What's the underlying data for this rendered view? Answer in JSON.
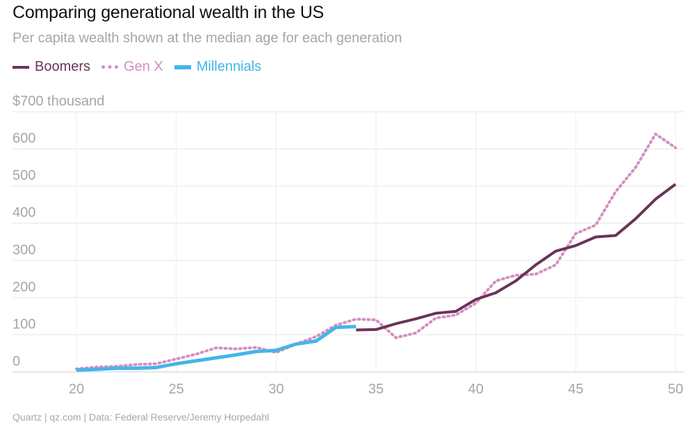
{
  "chart_data": {
    "type": "line",
    "title": "Comparing generational wealth in the US",
    "subtitle": "Per capita wealth shown at the median age for each generation",
    "y_unit_label": "$700 thousand",
    "ylim": [
      0,
      700
    ],
    "xlim": [
      20,
      50
    ],
    "y_ticks": [
      "0",
      "100",
      "200",
      "300",
      "400",
      "500",
      "600"
    ],
    "x_ticks": [
      "20",
      "25",
      "30",
      "35",
      "40",
      "45",
      "50"
    ],
    "grid": true,
    "legend_position": "top-left",
    "series": [
      {
        "name": "Boomers",
        "style": "solid",
        "color": "#6b3358",
        "x": [
          34,
          35,
          36,
          37,
          38,
          39,
          40,
          41,
          42,
          43,
          44,
          45,
          46,
          47,
          48,
          49,
          50
        ],
        "y": [
          113,
          114,
          130,
          143,
          158,
          163,
          195,
          213,
          245,
          288,
          325,
          340,
          363,
          367,
          412,
          465,
          505
        ]
      },
      {
        "name": "Gen X",
        "style": "dotted",
        "color": "#d38ec0",
        "x": [
          20,
          21,
          22,
          23,
          24,
          25,
          26,
          27,
          28,
          29,
          30,
          31,
          32,
          33,
          34,
          35,
          36,
          37,
          38,
          39,
          40,
          41,
          42,
          43,
          44,
          45,
          46,
          47,
          48,
          49,
          50
        ],
        "y": [
          8,
          13,
          15,
          20,
          22,
          35,
          48,
          65,
          62,
          66,
          52,
          75,
          95,
          126,
          142,
          140,
          92,
          105,
          145,
          153,
          185,
          245,
          260,
          263,
          288,
          372,
          395,
          485,
          550,
          640,
          603
        ]
      },
      {
        "name": "Millennials",
        "style": "solid",
        "color": "#46b4e7",
        "x": [
          20,
          21,
          22,
          23,
          24,
          25,
          26,
          27,
          28,
          29,
          30,
          31,
          32,
          33,
          34
        ],
        "y": [
          5,
          7,
          10,
          10,
          12,
          22,
          30,
          38,
          46,
          55,
          58,
          75,
          83,
          120,
          122
        ]
      }
    ]
  },
  "footer": "Quartz | qz.com | Data: Federal Reserve/Jeremy Horpedahl"
}
